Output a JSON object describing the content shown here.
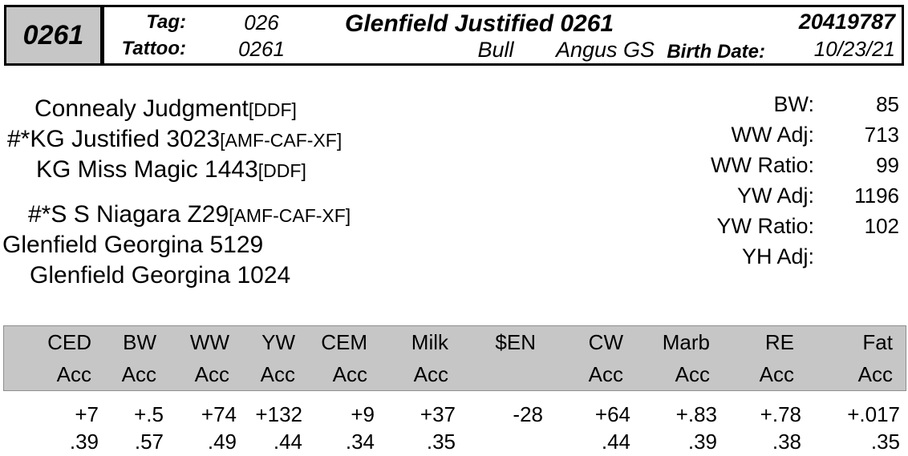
{
  "header": {
    "id_box": "0261",
    "tag_label": "Tag:",
    "tag_value": "026",
    "tattoo_label": "Tattoo:",
    "tattoo_value": "0261",
    "name": "Glenfield Justified 0261",
    "sex": "Bull",
    "breed": "Angus GS",
    "reg_number": "20419787",
    "birth_date_label": "Birth Date:",
    "birth_date_value": "10/23/21"
  },
  "pedigree": {
    "lines": [
      {
        "prefix": "",
        "name": "Connealy Judgment",
        "suffix": "[DDF]"
      },
      {
        "prefix": "#*",
        "name": "KG Justified 3023",
        "suffix": "[AMF-CAF-XF]"
      },
      {
        "prefix": "",
        "name": "KG Miss Magic 1443",
        "suffix": "[DDF]"
      },
      {
        "prefix": "#*",
        "name": "S S Niagara Z29",
        "suffix": "[AMF-CAF-XF]"
      },
      {
        "prefix": "",
        "name": "Glenfield Georgina 5129",
        "suffix": ""
      },
      {
        "prefix": "",
        "name": "Glenfield Georgina 1024",
        "suffix": ""
      }
    ]
  },
  "performance": {
    "rows": [
      {
        "label": "BW:",
        "value": "85"
      },
      {
        "label": "WW Adj:",
        "value": "713"
      },
      {
        "label": "WW Ratio:",
        "value": "99"
      },
      {
        "label": "YW Adj:",
        "value": "1196"
      },
      {
        "label": "YW Ratio:",
        "value": "102"
      },
      {
        "label": "YH Adj:",
        "value": ""
      }
    ]
  },
  "epd": {
    "acc_header": "Acc",
    "columns": [
      {
        "trait": "CED",
        "acc_label": "Acc",
        "epd": "+7",
        "acc": ".39"
      },
      {
        "trait": "BW",
        "acc_label": "Acc",
        "epd": "+.5",
        "acc": ".57"
      },
      {
        "trait": "WW",
        "acc_label": "Acc",
        "epd": "+74",
        "acc": ".49"
      },
      {
        "trait": "YW",
        "acc_label": "Acc",
        "epd": "+132",
        "acc": ".44"
      },
      {
        "trait": "CEM",
        "acc_label": "Acc",
        "epd": "+9",
        "acc": ".34"
      },
      {
        "trait": "Milk",
        "acc_label": "Acc",
        "epd": "+37",
        "acc": ".35"
      },
      {
        "trait": "$EN",
        "acc_label": "",
        "epd": "-28",
        "acc": ""
      },
      {
        "trait": "CW",
        "acc_label": "Acc",
        "epd": "+64",
        "acc": ".44"
      },
      {
        "trait": "Marb",
        "acc_label": "Acc",
        "epd": "+.83",
        "acc": ".39"
      },
      {
        "trait": "RE",
        "acc_label": "Acc",
        "epd": "+.78",
        "acc": ".38"
      },
      {
        "trait": "Fat",
        "acc_label": "Acc",
        "epd": "+.017",
        "acc": ".35"
      }
    ]
  },
  "colors": {
    "band_gray": "#c6c6c6",
    "border_black": "#000000"
  }
}
